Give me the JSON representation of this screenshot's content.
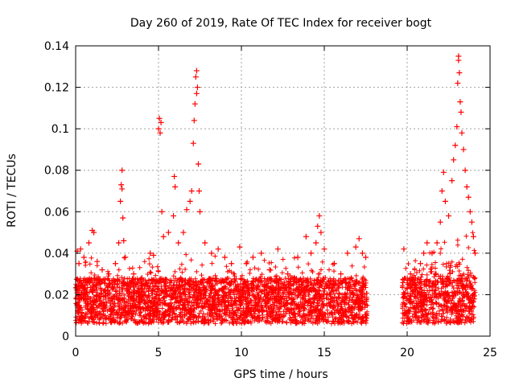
{
  "chart_data": {
    "type": "scatter",
    "title": "Day 260 of 2019, Rate Of TEC Index for receiver bogt",
    "xlabel": "GPS time / hours",
    "ylabel": "ROTI / TECUs",
    "xlim": [
      0,
      25
    ],
    "ylim": [
      0,
      0.14
    ],
    "xticks": [
      0,
      5,
      10,
      15,
      20,
      25
    ],
    "xtick_labels": [
      "0",
      "5",
      "10",
      "15",
      "20",
      "25"
    ],
    "yticks": [
      0,
      0.02,
      0.04,
      0.06,
      0.08,
      0.1,
      0.12,
      0.14
    ],
    "ytick_labels": [
      "0",
      "0.02",
      "0.04",
      "0.06",
      "0.08",
      "0.1",
      "0.12",
      "0.14"
    ],
    "grid": true,
    "marker": "+",
    "color": "#ff0000",
    "data_gap_hours": [
      17.6,
      19.7
    ],
    "series": [
      {
        "name": "ROTI",
        "points": [
          [
            0.1,
            0.041
          ],
          [
            0.2,
            0.035
          ],
          [
            0.3,
            0.042
          ],
          [
            0.5,
            0.038
          ],
          [
            0.8,
            0.045
          ],
          [
            1.0,
            0.051
          ],
          [
            1.1,
            0.05
          ],
          [
            1.3,
            0.036
          ],
          [
            1.6,
            0.032
          ],
          [
            2.0,
            0.03
          ],
          [
            2.4,
            0.035
          ],
          [
            2.6,
            0.045
          ],
          [
            2.7,
            0.065
          ],
          [
            2.75,
            0.073
          ],
          [
            2.8,
            0.08
          ],
          [
            2.8,
            0.071
          ],
          [
            2.85,
            0.057
          ],
          [
            2.9,
            0.046
          ],
          [
            3.0,
            0.038
          ],
          [
            3.5,
            0.03
          ],
          [
            4.0,
            0.028
          ],
          [
            4.5,
            0.04
          ],
          [
            4.7,
            0.039
          ],
          [
            5.0,
            0.1
          ],
          [
            5.05,
            0.105
          ],
          [
            5.1,
            0.098
          ],
          [
            5.15,
            0.103
          ],
          [
            5.2,
            0.06
          ],
          [
            5.3,
            0.048
          ],
          [
            5.6,
            0.05
          ],
          [
            5.9,
            0.058
          ],
          [
            5.95,
            0.077
          ],
          [
            6.0,
            0.072
          ],
          [
            6.2,
            0.045
          ],
          [
            6.5,
            0.05
          ],
          [
            6.7,
            0.061
          ],
          [
            6.9,
            0.065
          ],
          [
            7.0,
            0.07
          ],
          [
            7.1,
            0.093
          ],
          [
            7.15,
            0.104
          ],
          [
            7.2,
            0.112
          ],
          [
            7.25,
            0.125
          ],
          [
            7.3,
            0.128
          ],
          [
            7.3,
            0.117
          ],
          [
            7.35,
            0.12
          ],
          [
            7.4,
            0.083
          ],
          [
            7.45,
            0.07
          ],
          [
            7.5,
            0.06
          ],
          [
            7.8,
            0.045
          ],
          [
            8.2,
            0.04
          ],
          [
            8.6,
            0.042
          ],
          [
            9.0,
            0.038
          ],
          [
            9.4,
            0.035
          ],
          [
            9.9,
            0.043
          ],
          [
            10.3,
            0.035
          ],
          [
            10.7,
            0.038
          ],
          [
            11.2,
            0.04
          ],
          [
            11.7,
            0.032
          ],
          [
            12.2,
            0.042
          ],
          [
            12.8,
            0.03
          ],
          [
            13.4,
            0.038
          ],
          [
            13.9,
            0.048
          ],
          [
            14.2,
            0.04
          ],
          [
            14.5,
            0.045
          ],
          [
            14.6,
            0.053
          ],
          [
            14.7,
            0.058
          ],
          [
            14.8,
            0.05
          ],
          [
            15.0,
            0.042
          ],
          [
            15.6,
            0.035
          ],
          [
            16.0,
            0.03
          ],
          [
            16.4,
            0.04
          ],
          [
            16.9,
            0.043
          ],
          [
            17.1,
            0.047
          ],
          [
            17.3,
            0.04
          ],
          [
            17.5,
            0.038
          ],
          [
            19.8,
            0.042
          ],
          [
            20.2,
            0.03
          ],
          [
            20.5,
            0.028
          ],
          [
            20.8,
            0.035
          ],
          [
            21.0,
            0.04
          ],
          [
            21.2,
            0.045
          ],
          [
            21.5,
            0.04
          ],
          [
            21.8,
            0.045
          ],
          [
            22.0,
            0.055
          ],
          [
            22.1,
            0.07
          ],
          [
            22.2,
            0.079
          ],
          [
            22.3,
            0.065
          ],
          [
            22.5,
            0.058
          ],
          [
            22.7,
            0.075
          ],
          [
            22.8,
            0.085
          ],
          [
            22.9,
            0.092
          ],
          [
            23.0,
            0.101
          ],
          [
            23.05,
            0.122
          ],
          [
            23.1,
            0.133
          ],
          [
            23.1,
            0.135
          ],
          [
            23.15,
            0.127
          ],
          [
            23.2,
            0.113
          ],
          [
            23.25,
            0.108
          ],
          [
            23.3,
            0.098
          ],
          [
            23.4,
            0.09
          ],
          [
            23.5,
            0.08
          ],
          [
            23.6,
            0.072
          ],
          [
            23.7,
            0.067
          ],
          [
            23.8,
            0.06
          ],
          [
            23.9,
            0.055
          ],
          [
            24.0,
            0.048
          ],
          [
            24.1,
            0.04
          ]
        ]
      }
    ]
  }
}
